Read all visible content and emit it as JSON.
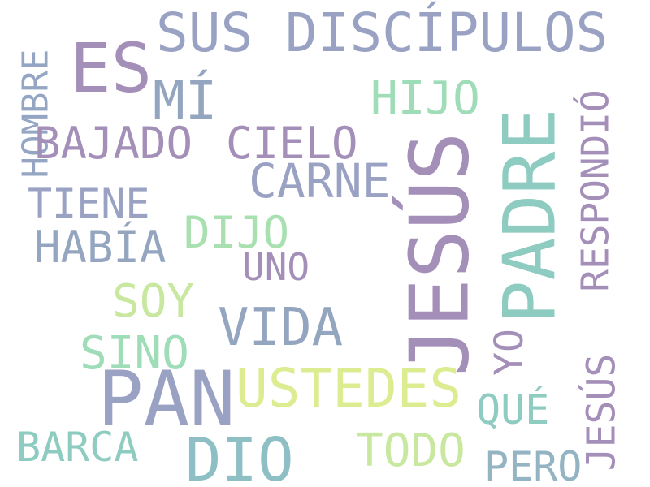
{
  "words": [
    {
      "text": "SUS DISCÍPULOS",
      "color": "#9aa2c4"
    },
    {
      "text": "ES",
      "color": "#a48fb9"
    },
    {
      "text": "MÍ",
      "color": "#94a6bf"
    },
    {
      "text": "HIJO",
      "color": "#9fdcb8"
    },
    {
      "text": "HOMBRE",
      "color": "#94a6c4"
    },
    {
      "text": "BAJADO",
      "color": "#a48fb9"
    },
    {
      "text": "CIELO",
      "color": "#a48fb9"
    },
    {
      "text": "CARNE",
      "color": "#9aa2c4"
    },
    {
      "text": "PADRE",
      "color": "#8ecbc0"
    },
    {
      "text": "JESÚS",
      "color": "#a48fb9"
    },
    {
      "text": "RESPONDIÓ",
      "color": "#a48fb9"
    },
    {
      "text": "TIENE",
      "color": "#9aa2c4"
    },
    {
      "text": "DIJO",
      "color": "#a9e0b0"
    },
    {
      "text": "HABÍA",
      "color": "#94a6bf"
    },
    {
      "text": "UNO",
      "color": "#a48fb9"
    },
    {
      "text": "SOY",
      "color": "#c8e8a0"
    },
    {
      "text": "VIDA",
      "color": "#94a6bf"
    },
    {
      "text": "YO",
      "color": "#a48fb9"
    },
    {
      "text": "SINO",
      "color": "#9fdcb8"
    },
    {
      "text": "PAN",
      "color": "#9aa2c4"
    },
    {
      "text": "USTEDES",
      "color": "#dcec90"
    },
    {
      "text": "QUÉ",
      "color": "#8ecbc0"
    },
    {
      "text": "JESÚS",
      "color": "#a48fb9"
    },
    {
      "text": "BARCA",
      "color": "#8ecbc0"
    },
    {
      "text": "DIO",
      "color": "#8ebfc4"
    },
    {
      "text": "TODO",
      "color": "#c8e8a0"
    },
    {
      "text": "PERO",
      "color": "#94b4c4"
    }
  ]
}
